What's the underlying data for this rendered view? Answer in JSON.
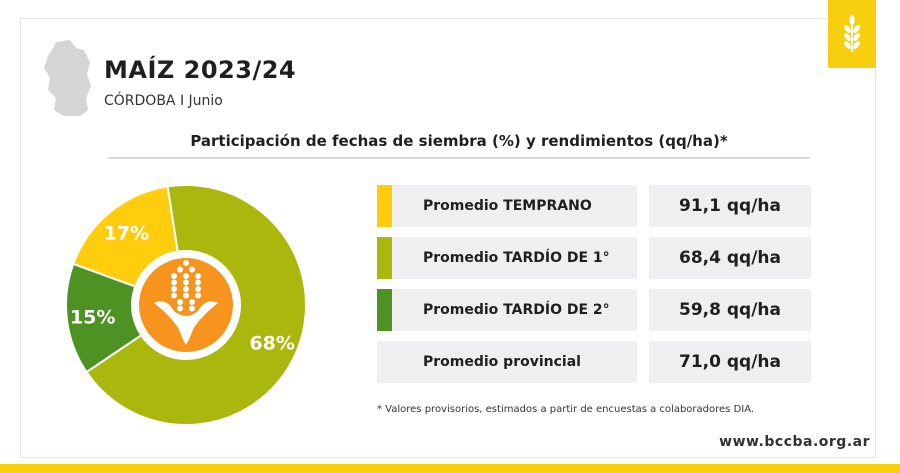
{
  "header": {
    "title": "MAÍZ 2023/24",
    "subtitle": "CÓRDOBA I Junio"
  },
  "chart_data": {
    "type": "pie",
    "title": "Participación de fechas de siembra (%) y rendimientos (qq/ha)*",
    "categories": [
      "Promedio TEMPRANO",
      "Promedio TARDÍO DE 1°",
      "Promedio TARDÍO DE 2°"
    ],
    "values": [
      17,
      68,
      15
    ],
    "labels": [
      "17%",
      "68%",
      "15%"
    ],
    "colors": [
      "#ffcd0d",
      "#aab70c",
      "#4d9222"
    ]
  },
  "yields": [
    {
      "label": "Promedio TEMPRANO",
      "value": "91,1 qq/ha",
      "color": "#ffcd0d"
    },
    {
      "label": "Promedio TARDÍO DE 1°",
      "value": "68,4 qq/ha",
      "color": "#aab70c"
    },
    {
      "label": "Promedio TARDÍO DE 2°",
      "value": "59,8 qq/ha",
      "color": "#4d9222"
    },
    {
      "label": "Promedio provincial",
      "value": "71,0 qq/ha",
      "color": ""
    }
  ],
  "footnote": "* Valores provisorios, estimados a partir de encuestas a colaboradores DIA.",
  "footer": {
    "website": "www.bccba.org.ar"
  },
  "icons": {
    "brand": "wheat-icon",
    "map": "cordoba-map-icon",
    "center": "corn-icon"
  },
  "colors": {
    "brand_yellow": "#f7cf0f",
    "icon_orange": "#f7941d"
  }
}
